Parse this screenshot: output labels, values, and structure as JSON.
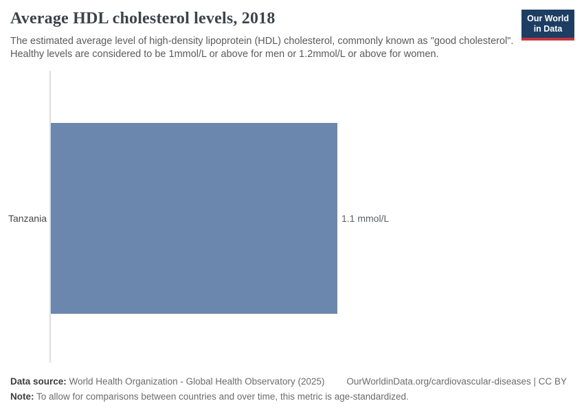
{
  "header": {
    "title": "Average HDL cholesterol levels, 2018",
    "subtitle": "The estimated average level of high-density lipoprotein (HDL) cholesterol, commonly known as \"good cholesterol\". Healthy levels are considered to be 1mmol/L or above for men or 1.2mmol/L or above for women.",
    "logo": {
      "line1": "Our World",
      "line2": "in Data"
    }
  },
  "chart_data": {
    "type": "bar",
    "orientation": "horizontal",
    "title": "Average HDL cholesterol levels, 2018",
    "categories": [
      "Tanzania"
    ],
    "values": [
      1.1
    ],
    "unit": "mmol/L",
    "value_labels": [
      "1.1 mmol/L"
    ],
    "scale_max": 1.1,
    "grid": false,
    "legend": false
  },
  "footer": {
    "data_source_label": "Data source:",
    "data_source_value": "World Health Organization - Global Health Observatory (2025)",
    "link": "OurWorldinData.org/cardiovascular-diseases | CC BY",
    "note_label": "Note:",
    "note_value": "To allow for comparisons between countries and over time, this metric is age-standardized."
  },
  "colors": {
    "bar": "#6c87ad",
    "logo_background": "#1d3d63",
    "logo_accent": "#c5353c",
    "axis_line": "#dddddd"
  }
}
